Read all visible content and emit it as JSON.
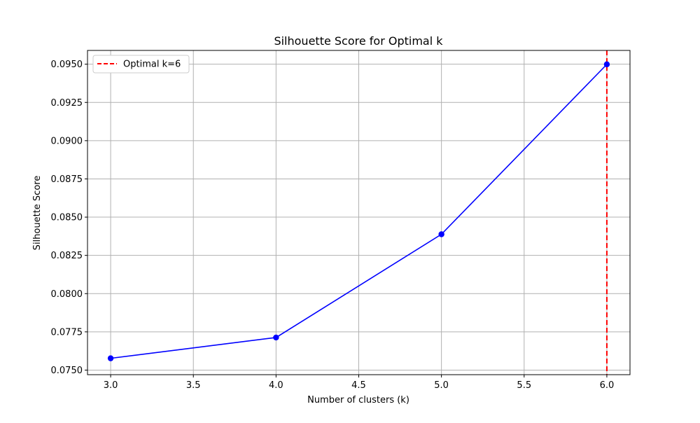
{
  "chart_data": {
    "type": "line",
    "title": "Silhouette Score for Optimal k",
    "xlabel": "Number of clusters (k)",
    "ylabel": "Silhouette Score",
    "xlim": [
      2.86,
      6.14
    ],
    "ylim": [
      0.0747,
      0.0959
    ],
    "xticks": [
      "3.0",
      "3.5",
      "4.0",
      "4.5",
      "5.0",
      "5.5",
      "6.0"
    ],
    "yticks": [
      "0.0750",
      "0.0775",
      "0.0800",
      "0.0825",
      "0.0850",
      "0.0875",
      "0.0900",
      "0.0925",
      "0.0950"
    ],
    "grid": true,
    "legend_position": "top-left",
    "series": [
      {
        "x": [
          3,
          4,
          5,
          6
        ],
        "y": [
          0.07577,
          0.07713,
          0.08388,
          0.09499
        ],
        "color": "#0000ff",
        "marker": "circle"
      }
    ],
    "vline": {
      "x": 6,
      "label": "Optimal k=6",
      "color": "#ff0000",
      "style": "dashed"
    },
    "legend": [
      {
        "label": "Optimal k=6",
        "color": "#ff0000",
        "style": "dashed"
      }
    ]
  }
}
